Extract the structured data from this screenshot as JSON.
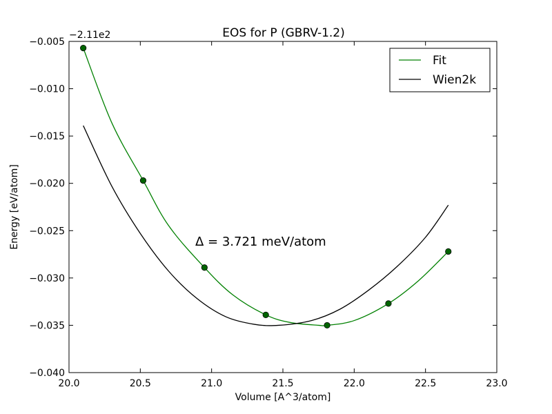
{
  "chart_data": {
    "type": "line",
    "title": "EOS for P (GBRV-1.2)",
    "xlabel": "Volume [A^3/atom]",
    "ylabel": "Energy [eV/atom]",
    "offset_label": "−2.11e2",
    "annotation": "Δ = 3.721 meV/atom",
    "xlim": [
      20.0,
      23.0
    ],
    "ylim": [
      -0.04,
      -0.005
    ],
    "x_ticks": [
      20.0,
      20.5,
      21.0,
      21.5,
      22.0,
      22.5,
      23.0
    ],
    "x_tick_labels": [
      "20.0",
      "20.5",
      "21.0",
      "21.5",
      "22.0",
      "22.5",
      "23.0"
    ],
    "y_ticks": [
      -0.04,
      -0.035,
      -0.03,
      -0.025,
      -0.02,
      -0.015,
      -0.01,
      -0.005
    ],
    "y_tick_labels": [
      "−0.040",
      "−0.035",
      "−0.030",
      "−0.025",
      "−0.020",
      "−0.015",
      "−0.010",
      "−0.005"
    ],
    "legend_position": "top-right",
    "series": [
      {
        "name": "Fit",
        "color": "#008000",
        "kind": "curve",
        "x": [
          20.1,
          20.3,
          20.52,
          20.7,
          20.95,
          21.15,
          21.38,
          21.55,
          21.75,
          21.81,
          22.0,
          22.24,
          22.45,
          22.66
        ],
        "y": [
          -0.0057,
          -0.0136,
          -0.0197,
          -0.0245,
          -0.0289,
          -0.0318,
          -0.0339,
          -0.0347,
          -0.035,
          -0.035,
          -0.0345,
          -0.0327,
          -0.0303,
          -0.0272
        ]
      },
      {
        "name": "Wien2k",
        "color": "#000000",
        "kind": "curve",
        "x": [
          20.1,
          20.3,
          20.5,
          20.7,
          20.9,
          21.1,
          21.3,
          21.47,
          21.7,
          21.9,
          22.1,
          22.3,
          22.5,
          22.66
        ],
        "y": [
          -0.0139,
          -0.0203,
          -0.0253,
          -0.0293,
          -0.0322,
          -0.0341,
          -0.0349,
          -0.035,
          -0.0345,
          -0.0333,
          -0.0313,
          -0.0288,
          -0.0257,
          -0.0223
        ]
      },
      {
        "name": "",
        "color": "#006400",
        "kind": "points",
        "x": [
          20.1,
          20.52,
          20.95,
          21.38,
          21.81,
          22.24,
          22.66
        ],
        "y": [
          -0.0057,
          -0.0197,
          -0.0289,
          -0.0339,
          -0.035,
          -0.0327,
          -0.0272
        ]
      }
    ]
  }
}
